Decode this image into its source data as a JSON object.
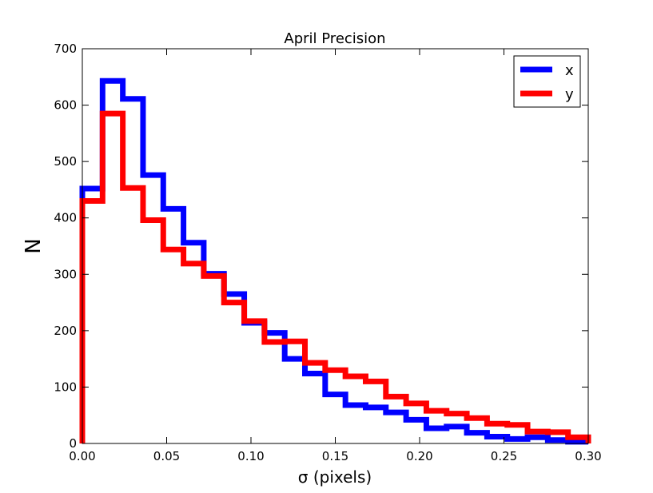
{
  "chart_data": {
    "type": "histogram",
    "title": "April Precision",
    "xlabel": "σ (pixels)",
    "ylabel": "N",
    "xlim": [
      0.0,
      0.3
    ],
    "ylim": [
      0,
      700
    ],
    "xticks": [
      "0.00",
      "0.05",
      "0.10",
      "0.15",
      "0.20",
      "0.25",
      "0.30"
    ],
    "yticks": [
      "0",
      "100",
      "200",
      "300",
      "400",
      "500",
      "600",
      "700"
    ],
    "grid": false,
    "legend_position": "top-right",
    "bin_edges": [
      0.0,
      0.012,
      0.024,
      0.036,
      0.048,
      0.06,
      0.072,
      0.084,
      0.096,
      0.108,
      0.12,
      0.132,
      0.144,
      0.156,
      0.168,
      0.18,
      0.192,
      0.204,
      0.216,
      0.228,
      0.24,
      0.252,
      0.264,
      0.276,
      0.288,
      0.3
    ],
    "series": [
      {
        "name": "x",
        "color": "#0000ff",
        "counts": [
          452,
          643,
          611,
          476,
          416,
          356,
          301,
          265,
          214,
          196,
          150,
          124,
          87,
          68,
          64,
          55,
          42,
          27,
          30,
          19,
          12,
          8,
          11,
          6,
          3
        ]
      },
      {
        "name": "y",
        "color": "#ff0000",
        "counts": [
          430,
          585,
          453,
          396,
          344,
          319,
          297,
          250,
          217,
          180,
          181,
          143,
          130,
          119,
          110,
          83,
          71,
          58,
          53,
          45,
          35,
          33,
          21,
          20,
          11
        ]
      }
    ]
  }
}
